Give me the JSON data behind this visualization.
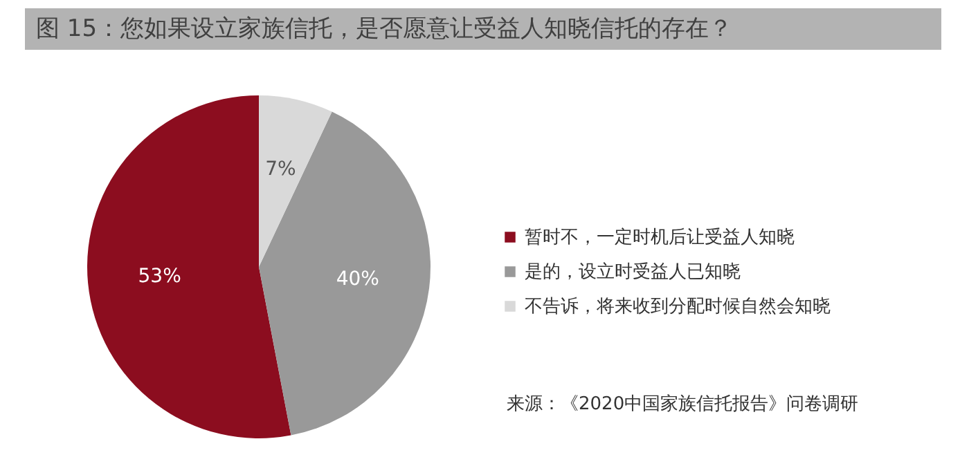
{
  "chart_data": {
    "type": "pie",
    "title": "图 15：您如果设立家族信托，是否愿意让受益人知晓信托的存在？",
    "categories": [
      "暂时不，一定时机后让受益人知晓",
      "是的，设立时受益人已知晓",
      "不告诉，将来收到分配时候自然会知晓"
    ],
    "values": [
      53,
      40,
      7
    ],
    "colors": [
      "#8c0d1f",
      "#999999",
      "#d9d9d9"
    ],
    "value_labels": [
      "53%",
      "40%",
      "7%"
    ],
    "legend": "right",
    "annotations": [
      "来源：《2020中国家族信托报告》问卷调研"
    ]
  }
}
